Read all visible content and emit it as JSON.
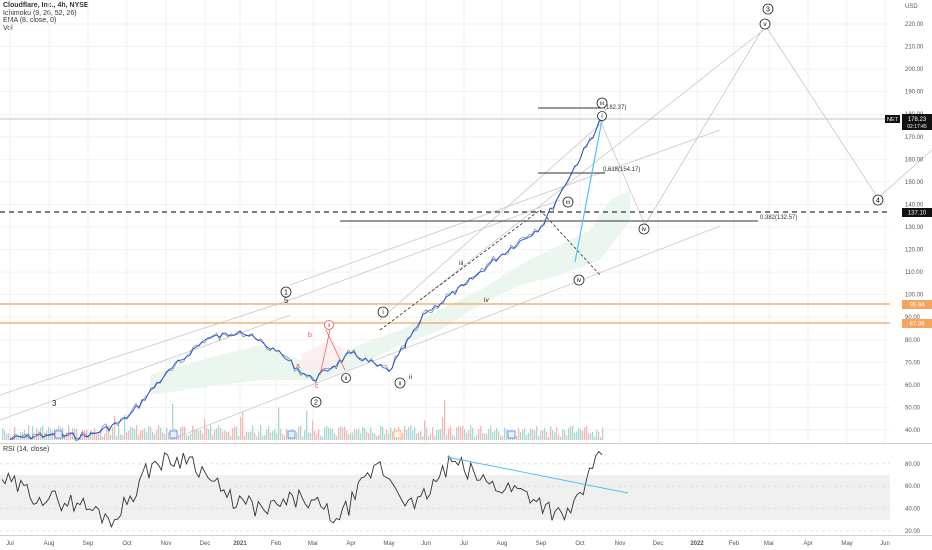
{
  "header": {
    "title": "Cloudflare, Inc., 4h, NYSE",
    "indicators": [
      "Ichimoku (9, 26, 52, 26)",
      "EMA (8, close, 0)",
      "Vol"
    ],
    "currency": "USD"
  },
  "rsi": {
    "label": "RSI (14, close)"
  },
  "colors": {
    "up": "#26a69a",
    "down": "#ef5350",
    "price_line": "#2962ff",
    "orange": "#f7a35c",
    "trend_blue": "#4fc3f7",
    "rsi_band": "#f0f0f0"
  },
  "price_badges": {
    "net": {
      "label": "NET",
      "value": "178.23",
      "sub": "02:17:45"
    },
    "level_137": "137.10",
    "level_95": "95.94",
    "level_87": "87.38"
  },
  "annotations": {
    "fib_618": "0.618(154.17)",
    "fib_382": "0.382(132.57)",
    "fib_top": "(182.37)"
  },
  "wave_labels": {
    "circle_3_top": "3",
    "circle_4": "4",
    "circle_v": "v",
    "circle_iv": "iv",
    "circle_iii_top": "iii",
    "circle_iii_small": "iii",
    "circle_iv_low": "iv",
    "circle_1": "1",
    "circle_2": "2",
    "circle_i": "i",
    "circle_ii": "ii",
    "circle_small_i": "i",
    "plain_3": "3",
    "plain_5": "5",
    "plain_a": "a",
    "plain_b": "b",
    "plain_c": "c",
    "plain_iii": "iii",
    "plain_iv": "iv",
    "plain_i": "i",
    "plain_ii": "ii",
    "plain_v_top": "v"
  },
  "chart_data": {
    "type": "line",
    "title": "Cloudflare, Inc., 4h, NYSE",
    "x_ticks": [
      "Jul",
      "Aug",
      "Sep",
      "Oct",
      "Nov",
      "Dec",
      "2021",
      "Feb",
      "Mar",
      "Apr",
      "May",
      "Jun",
      "Jul",
      "Aug",
      "Sep",
      "Oct",
      "Nov",
      "Dec",
      "2022",
      "Feb",
      "Mar",
      "Apr",
      "May",
      "Jun"
    ],
    "y_ticks": [
      40,
      50,
      60,
      70,
      80,
      90,
      100,
      110,
      120,
      130,
      140,
      150,
      160,
      170,
      180,
      190,
      200,
      210,
      220
    ],
    "ylim": [
      35,
      225
    ],
    "series": [
      {
        "name": "NET",
        "x": [
          "Jul",
          "Aug",
          "Sep",
          "Oct",
          "Nov",
          "Dec",
          "2021",
          "Feb",
          "Mar",
          "Apr",
          "May",
          "Jun",
          "Jul",
          "Aug",
          "Sep",
          "Oct"
        ],
        "values": [
          36,
          38,
          37,
          45,
          65,
          80,
          84,
          75,
          62,
          74,
          66,
          92,
          104,
          118,
          130,
          178
        ]
      },
      {
        "name": "Projection",
        "x": [
          "Oct",
          "Nov",
          "Dec",
          "2022"
        ],
        "values": [
          178,
          127,
          165,
          218
        ]
      }
    ],
    "levels": [
      178.23,
      137.1,
      95.94,
      87.38
    ],
    "rsi": {
      "label": "RSI (14, close)",
      "y_ticks": [
        20,
        40,
        60,
        80
      ],
      "ylim": [
        20,
        95
      ],
      "band": [
        30,
        70
      ],
      "values": [
        66,
        50,
        45,
        30,
        80,
        86,
        50,
        38,
        50,
        30,
        80,
        40,
        82,
        62,
        55,
        30,
        88
      ]
    }
  }
}
